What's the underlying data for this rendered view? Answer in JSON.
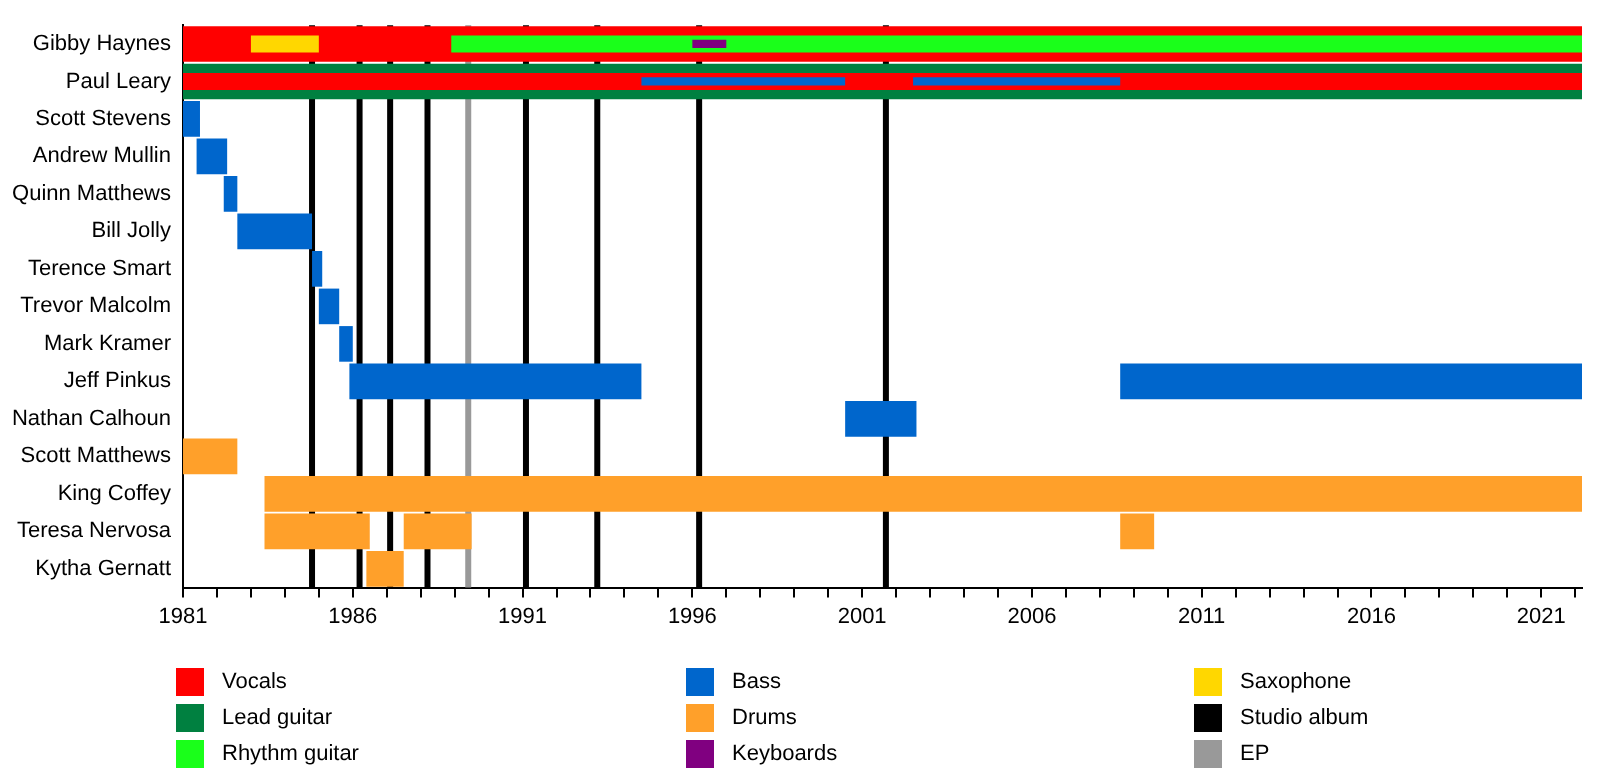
{
  "chart_data": {
    "type": "bar",
    "orientation": "horizontal",
    "categories": [
      "Gibby Haynes",
      "Paul Leary",
      "Scott Stevens",
      "Andrew Mullin",
      "Quinn Matthews",
      "Bill Jolly",
      "Terence Smart",
      "Trevor Malcolm",
      "Mark Kramer",
      "Jeff Pinkus",
      "Nathan Calhoun",
      "Scott Matthews",
      "King Coffey",
      "Teresa Nervosa",
      "Kytha Gernatt"
    ],
    "series": [
      {
        "name": "Vocals",
        "color": "#ff0000",
        "base": [
          1981,
          1981,
          null,
          null,
          null,
          null,
          null,
          null,
          null,
          null,
          null,
          null,
          null,
          null,
          null
        ],
        "values": [
          41.2,
          41.2,
          null,
          null,
          null,
          null,
          null,
          null,
          null,
          null,
          null,
          null,
          null,
          null,
          null
        ]
      },
      {
        "name": "Lead guitar",
        "color": "#008040",
        "base": [
          null,
          1981,
          null,
          null,
          null,
          null,
          null,
          null,
          null,
          null,
          null,
          null,
          null,
          null,
          null
        ],
        "values": [
          null,
          41.2,
          null,
          null,
          null,
          null,
          null,
          null,
          null,
          null,
          null,
          null,
          null,
          null,
          null
        ]
      },
      {
        "name": "Rhythm guitar",
        "color": "#1aff1a",
        "base": [
          1988.9,
          null,
          null,
          null,
          null,
          null,
          null,
          null,
          null,
          null,
          null,
          null,
          null,
          null,
          null
        ],
        "values": [
          33.3,
          null,
          null,
          null,
          null,
          null,
          null,
          null,
          null,
          null,
          null,
          null,
          null,
          null,
          null
        ]
      },
      {
        "name": "Bass",
        "color": "#0066cc",
        "base": [
          null,
          1994.5,
          1981,
          1981.4,
          1982.2,
          1982.6,
          1984.8,
          1985,
          1985.6,
          1985.9,
          2000.5,
          null,
          null,
          null,
          null
        ],
        "values": [
          null,
          6,
          0.5,
          0.9,
          0.4,
          2.2,
          0.3,
          0.6,
          0.4,
          8.6,
          2.1,
          null,
          null,
          null,
          null
        ]
      },
      {
        "name": "Drums",
        "color": "#ffa02a",
        "base": [
          null,
          null,
          null,
          null,
          null,
          null,
          null,
          null,
          null,
          null,
          null,
          1981,
          1983.4,
          1983.4,
          1986.4
        ],
        "values": [
          null,
          null,
          null,
          null,
          null,
          null,
          null,
          null,
          null,
          null,
          null,
          1.6,
          38.8,
          3.1,
          1.1
        ]
      },
      {
        "name": "Keyboards",
        "color": "#800080",
        "base": [
          1996,
          null,
          null,
          null,
          null,
          null,
          null,
          null,
          null,
          null,
          null,
          null,
          null,
          null,
          null
        ],
        "values": [
          1,
          null,
          null,
          null,
          null,
          null,
          null,
          null,
          null,
          null,
          null,
          null,
          null,
          null,
          null
        ]
      },
      {
        "name": "Saxophone",
        "color": "#ffd700",
        "base": [
          1983,
          null,
          null,
          null,
          null,
          null,
          null,
          null,
          null,
          null,
          null,
          null,
          null,
          null,
          null
        ],
        "values": [
          2,
          null,
          null,
          null,
          null,
          null,
          null,
          null,
          null,
          null,
          null,
          null,
          null,
          null,
          null
        ]
      },
      {
        "color": "#0066cc",
        "base": [
          null,
          2002.5,
          null,
          null,
          null,
          null,
          null,
          null,
          null,
          2008.6,
          null,
          null,
          null,
          null,
          null
        ],
        "values": [
          null,
          6.1,
          null,
          null,
          null,
          null,
          null,
          null,
          null,
          13.6,
          null,
          null,
          null,
          null,
          null
        ]
      },
      {
        "color": "#ffa02a",
        "base": [
          null,
          null,
          null,
          null,
          null,
          null,
          null,
          null,
          null,
          null,
          null,
          null,
          null,
          1987.5,
          null
        ],
        "values": [
          null,
          null,
          null,
          null,
          null,
          null,
          null,
          null,
          null,
          null,
          null,
          null,
          null,
          2,
          null
        ]
      },
      {
        "color": "#ffa02a",
        "base": [
          null,
          null,
          null,
          null,
          null,
          null,
          null,
          null,
          null,
          null,
          null,
          null,
          null,
          2008.6,
          null
        ],
        "values": [
          null,
          null,
          null,
          null,
          null,
          null,
          null,
          null,
          null,
          null,
          null,
          null,
          null,
          1,
          null
        ]
      }
    ],
    "xlim": [
      1981,
      2022.2
    ],
    "xticks": [
      1981,
      {
        "value": 1982,
        "label": null
      },
      {
        "value": 1983,
        "label": null
      },
      {
        "value": 1984,
        "label": null
      },
      {
        "value": 1985,
        "label": null
      },
      1986,
      {
        "value": 1987,
        "label": null
      },
      {
        "value": 1988,
        "label": null
      },
      {
        "value": 1989,
        "label": null
      },
      {
        "value": 1990,
        "label": null
      },
      1991,
      {
        "value": 1992,
        "label": null
      },
      {
        "value": 1993,
        "label": null
      },
      {
        "value": 1994,
        "label": null
      },
      {
        "value": 1995,
        "label": null
      },
      1996,
      {
        "value": 1997,
        "label": null
      },
      {
        "value": 1998,
        "label": null
      },
      {
        "value": 1999,
        "label": null
      },
      {
        "value": 2000,
        "label": null
      },
      2001,
      {
        "value": 2002,
        "label": null
      },
      {
        "value": 2003,
        "label": null
      },
      {
        "value": 2004,
        "label": null
      },
      {
        "value": 2005,
        "label": null
      },
      2006,
      {
        "value": 2007,
        "label": null
      },
      {
        "value": 2008,
        "label": null
      },
      {
        "value": 2009,
        "label": null
      },
      {
        "value": 2010,
        "label": null
      },
      2011,
      {
        "value": 2012,
        "label": null
      },
      {
        "value": 2013,
        "label": null
      },
      {
        "value": 2014,
        "label": null
      },
      {
        "value": 2015,
        "label": null
      },
      2016,
      {
        "value": 2017,
        "label": null
      },
      {
        "value": 2018,
        "label": null
      },
      {
        "value": 2019,
        "label": null
      },
      {
        "value": 2020,
        "label": null
      },
      2021,
      {
        "value": 2022,
        "label": null
      }
    ],
    "ref_lines": [
      {
        "axis": "x",
        "value": 1984.8,
        "label": "Studio album",
        "color": "#000000"
      },
      {
        "axis": "x",
        "value": 1986.2,
        "color": "#000000"
      },
      {
        "axis": "x",
        "value": 1987.1,
        "color": "#000000"
      },
      {
        "axis": "x",
        "value": 1988.2,
        "color": "#000000"
      },
      {
        "axis": "x",
        "value": 1989.4,
        "label": "EP",
        "color": "#999999"
      },
      {
        "axis": "x",
        "value": 1991.1,
        "color": "#000000"
      },
      {
        "axis": "x",
        "value": 1993.2,
        "color": "#000000"
      },
      {
        "axis": "x",
        "value": 1996.2,
        "color": "#000000"
      },
      {
        "axis": "x",
        "value": 2001.7,
        "color": "#000000"
      }
    ],
    "grid": false,
    "legend": "bottom"
  }
}
